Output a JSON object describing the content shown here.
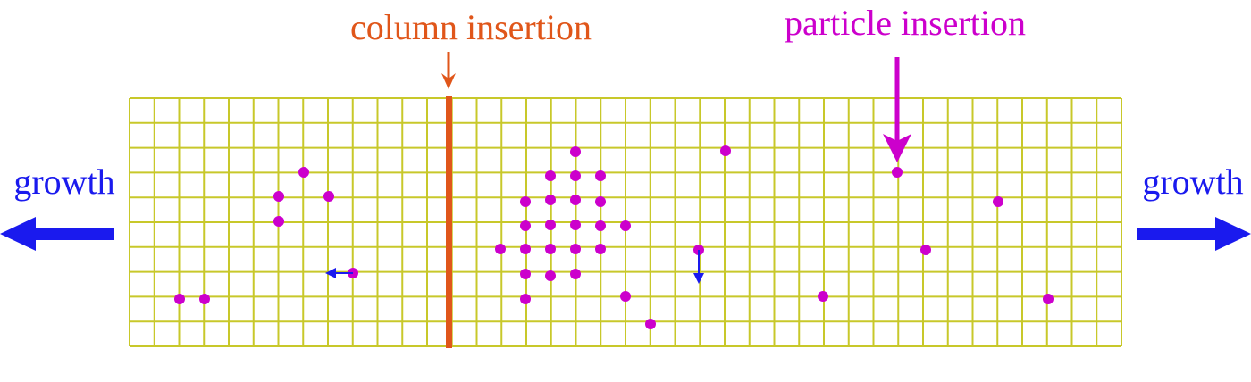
{
  "labels": {
    "column_insertion": "column insertion",
    "particle_insertion": "particle insertion",
    "growth_left": "growth",
    "growth_right": "growth"
  }
}
